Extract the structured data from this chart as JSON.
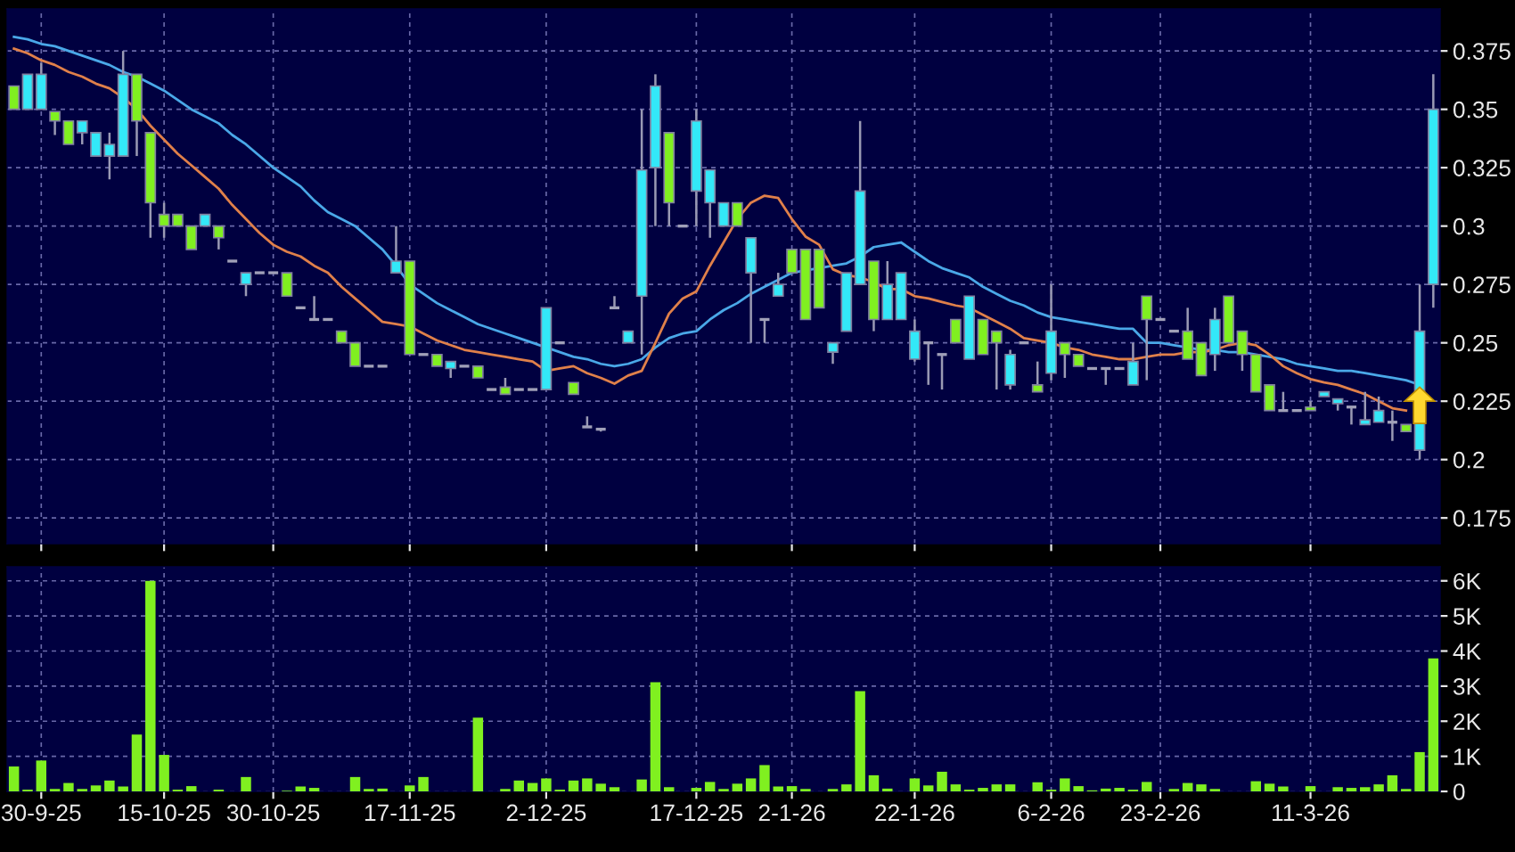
{
  "chart_data": [
    {
      "type": "candlestick",
      "tick_labels": "y",
      "grid": true,
      "categories": [
        null,
        null,
        null,
        null,
        null,
        null,
        null,
        null,
        null,
        null,
        null,
        null,
        null,
        null,
        null,
        null,
        null,
        null,
        null,
        null,
        null,
        null,
        null,
        null,
        null,
        null,
        null,
        null,
        null,
        null,
        null,
        null,
        null,
        null,
        null,
        null,
        null,
        null,
        null,
        null,
        null,
        null,
        null,
        null,
        null,
        null,
        null,
        null,
        null,
        null,
        null,
        null,
        null,
        null,
        null,
        null,
        null,
        null,
        null,
        null,
        null,
        null,
        null,
        null,
        null,
        null,
        null,
        null,
        null,
        null,
        null,
        null,
        null,
        null,
        null,
        null,
        null,
        null,
        null,
        null,
        null,
        null,
        null,
        null,
        null,
        null,
        null,
        null,
        null,
        null,
        null,
        null,
        null,
        null,
        null,
        null,
        null,
        null,
        null,
        null,
        null,
        null,
        null,
        null,
        null
      ],
      "ohlc": [
        [
          0.36,
          0.36,
          0.35,
          0.35
        ],
        [
          0.35,
          0.365,
          0.35,
          0.365
        ],
        [
          0.35,
          0.37,
          0.35,
          0.365
        ],
        [
          0.349,
          0.349,
          0.339,
          0.345
        ],
        [
          0.345,
          0.345,
          0.335,
          0.335
        ],
        [
          0.34,
          0.345,
          0.335,
          0.345
        ],
        [
          0.33,
          0.34,
          0.33,
          0.34
        ],
        [
          0.33,
          0.34,
          0.32,
          0.335
        ],
        [
          0.33,
          0.375,
          0.33,
          0.365
        ],
        [
          0.365,
          0.365,
          0.33,
          0.345
        ],
        [
          0.34,
          0.34,
          0.295,
          0.31
        ],
        [
          0.305,
          0.31,
          0.295,
          0.3
        ],
        [
          0.305,
          0.305,
          0.3,
          0.3
        ],
        [
          0.3,
          0.3,
          0.29,
          0.29
        ],
        [
          0.3,
          0.305,
          0.3,
          0.305
        ],
        [
          0.3,
          0.3,
          0.29,
          0.295
        ],
        [
          0.285,
          0.285,
          0.285,
          0.285
        ],
        [
          0.275,
          0.28,
          0.27,
          0.28
        ],
        [
          0.28,
          0.28,
          0.28,
          0.28
        ],
        [
          0.28,
          0.28,
          0.28,
          0.28
        ],
        [
          0.28,
          0.28,
          0.27,
          0.27
        ],
        [
          0.265,
          0.265,
          0.265,
          0.265
        ],
        [
          0.26,
          0.27,
          0.26,
          0.26
        ],
        [
          0.26,
          0.26,
          0.26,
          0.26
        ],
        [
          0.255,
          0.255,
          0.25,
          0.25
        ],
        [
          0.25,
          0.25,
          0.24,
          0.24
        ],
        [
          0.24,
          0.24,
          0.24,
          0.24
        ],
        [
          0.24,
          0.24,
          0.24,
          0.24
        ],
        [
          0.28,
          0.3,
          0.28,
          0.285
        ],
        [
          0.285,
          0.285,
          0.245,
          0.245
        ],
        [
          0.245,
          0.245,
          0.245,
          0.245
        ],
        [
          0.245,
          0.245,
          0.24,
          0.24
        ],
        [
          0.239,
          0.242,
          0.235,
          0.242
        ],
        [
          0.24,
          0.24,
          0.24,
          0.24
        ],
        [
          0.24,
          0.24,
          0.235,
          0.235
        ],
        [
          0.23,
          0.23,
          0.23,
          0.23
        ],
        [
          0.231,
          0.235,
          0.228,
          0.228
        ],
        [
          0.23,
          0.23,
          0.23,
          0.23
        ],
        [
          0.23,
          0.23,
          0.23,
          0.23
        ],
        [
          0.23,
          0.265,
          0.23,
          0.265
        ],
        [
          0.25,
          0.25,
          0.25,
          0.25
        ],
        [
          0.233,
          0.233,
          0.228,
          0.228
        ],
        [
          0.214,
          0.2185,
          0.214,
          0.214
        ],
        [
          0.213,
          0.213,
          0.212,
          0.213
        ],
        [
          0.265,
          0.27,
          0.265,
          0.265
        ],
        [
          0.25,
          0.255,
          0.25,
          0.255
        ],
        [
          0.27,
          0.35,
          0.245,
          0.324
        ],
        [
          0.325,
          0.365,
          0.3,
          0.36
        ],
        [
          0.34,
          0.34,
          0.3,
          0.31
        ],
        [
          0.3,
          0.3,
          0.3,
          0.3
        ],
        [
          0.315,
          0.35,
          0.3,
          0.345
        ],
        [
          0.31,
          0.324,
          0.295,
          0.324
        ],
        [
          0.3,
          0.31,
          0.3,
          0.31
        ],
        [
          0.31,
          0.31,
          0.3,
          0.3
        ],
        [
          0.28,
          0.295,
          0.25,
          0.295
        ],
        [
          0.26,
          0.26,
          0.25,
          0.26
        ],
        [
          0.27,
          0.28,
          0.27,
          0.275
        ],
        [
          0.29,
          0.29,
          0.28,
          0.28
        ],
        [
          0.29,
          0.29,
          0.26,
          0.26
        ],
        [
          0.29,
          0.29,
          0.265,
          0.265
        ],
        [
          0.246,
          0.25,
          0.241,
          0.25
        ],
        [
          0.255,
          0.28,
          0.255,
          0.28
        ],
        [
          0.275,
          0.345,
          0.275,
          0.315
        ],
        [
          0.285,
          0.285,
          0.255,
          0.26
        ],
        [
          0.26,
          0.285,
          0.26,
          0.275
        ],
        [
          0.26,
          0.28,
          0.26,
          0.28
        ],
        [
          0.243,
          0.26,
          0.242,
          0.255
        ],
        [
          0.25,
          0.25,
          0.232,
          0.25
        ],
        [
          0.245,
          0.245,
          0.23,
          0.245
        ],
        [
          0.26,
          0.26,
          0.25,
          0.25
        ],
        [
          0.243,
          0.27,
          0.243,
          0.27
        ],
        [
          0.26,
          0.26,
          0.245,
          0.245
        ],
        [
          0.255,
          0.255,
          0.23,
          0.25
        ],
        [
          0.232,
          0.247,
          0.23,
          0.245
        ],
        [
          0.25,
          0.25,
          0.25,
          0.25
        ],
        [
          0.232,
          0.242,
          0.229,
          0.229
        ],
        [
          0.237,
          0.275,
          0.234,
          0.255
        ],
        [
          0.25,
          0.25,
          0.235,
          0.245
        ],
        [
          0.245,
          0.245,
          0.24,
          0.24
        ],
        [
          0.239,
          0.239,
          0.239,
          0.239
        ],
        [
          0.239,
          0.239,
          0.232,
          0.239
        ],
        [
          0.239,
          0.239,
          0.239,
          0.239
        ],
        [
          0.232,
          0.25,
          0.232,
          0.242
        ],
        [
          0.27,
          0.27,
          0.234,
          0.26
        ],
        [
          0.26,
          0.26,
          0.26,
          0.26
        ],
        [
          0.255,
          0.255,
          0.255,
          0.255
        ],
        [
          0.255,
          0.265,
          0.243,
          0.243
        ],
        [
          0.25,
          0.25,
          0.236,
          0.236
        ],
        [
          0.245,
          0.265,
          0.238,
          0.26
        ],
        [
          0.27,
          0.27,
          0.25,
          0.25
        ],
        [
          0.255,
          0.255,
          0.238,
          0.245
        ],
        [
          0.245,
          0.245,
          0.229,
          0.229
        ],
        [
          0.232,
          0.232,
          0.221,
          0.221
        ],
        [
          0.221,
          0.229,
          0.221,
          0.221
        ],
        [
          0.221,
          0.221,
          0.221,
          0.221
        ],
        [
          0.2225,
          0.225,
          0.221,
          0.221
        ],
        [
          0.227,
          0.229,
          0.227,
          0.229
        ],
        [
          0.224,
          0.226,
          0.221,
          0.226
        ],
        [
          0.2225,
          0.2225,
          0.215,
          0.2225
        ],
        [
          0.215,
          0.229,
          0.215,
          0.217
        ],
        [
          0.216,
          0.227,
          0.216,
          0.221
        ],
        [
          0.216,
          0.221,
          0.208,
          0.216
        ],
        [
          0.215,
          0.215,
          0.212,
          0.212
        ],
        [
          0.204,
          0.275,
          0.2,
          0.255
        ],
        [
          0.275,
          0.365,
          0.265,
          0.35
        ]
      ],
      "colors": [
        "#80f020",
        "#33e8f8",
        "#33e8f8",
        "#80f020",
        "#80f020",
        "#33e8f8",
        "#33e8f8",
        "#33e8f8",
        "#33e8f8",
        "#80f020",
        "#80f020",
        "#80f020",
        "#80f020",
        "#80f020",
        "#33e8f8",
        "#80f020",
        "#a0a0b8",
        "#33e8f8",
        "#a0a0b8",
        "#a0a0b8",
        "#80f020",
        "#a0a0b8",
        "#a0a0b8",
        "#a0a0b8",
        "#80f020",
        "#80f020",
        "#a0a0b8",
        "#a0a0b8",
        "#33e8f8",
        "#80f020",
        "#a0a0b8",
        "#80f020",
        "#33e8f8",
        "#a0a0b8",
        "#80f020",
        "#a0a0b8",
        "#80f020",
        "#a0a0b8",
        "#a0a0b8",
        "#33e8f8",
        "#a0a0b8",
        "#80f020",
        "#a0a0b8",
        "#a0a0b8",
        "#a0a0b8",
        "#33e8f8",
        "#33e8f8",
        "#33e8f8",
        "#80f020",
        "#a0a0b8",
        "#33e8f8",
        "#33e8f8",
        "#33e8f8",
        "#80f020",
        "#33e8f8",
        "#a0a0b8",
        "#33e8f8",
        "#80f020",
        "#80f020",
        "#80f020",
        "#33e8f8",
        "#33e8f8",
        "#33e8f8",
        "#80f020",
        "#33e8f8",
        "#33e8f8",
        "#33e8f8",
        "#a0a0b8",
        "#a0a0b8",
        "#80f020",
        "#33e8f8",
        "#80f020",
        "#80f020",
        "#33e8f8",
        "#a0a0b8",
        "#80f020",
        "#33e8f8",
        "#80f020",
        "#80f020",
        "#a0a0b8",
        "#a0a0b8",
        "#a0a0b8",
        "#33e8f8",
        "#80f020",
        "#a0a0b8",
        "#a0a0b8",
        "#80f020",
        "#80f020",
        "#33e8f8",
        "#80f020",
        "#80f020",
        "#80f020",
        "#80f020",
        "#a0a0b8",
        "#a0a0b8",
        "#80f020",
        "#33e8f8",
        "#33e8f8",
        "#a0a0b8",
        "#33e8f8",
        "#33e8f8",
        "#a0a0b8",
        "#80f020",
        "#33e8f8",
        "#33e8f8"
      ],
      "series": [
        {
          "type": "line",
          "color": "#4aa8e8",
          "values": [
            0.381,
            0.38,
            0.378,
            0.377,
            0.375,
            0.373,
            0.371,
            0.369,
            0.366,
            0.364,
            0.361,
            0.358,
            0.354,
            0.35,
            0.347,
            0.344,
            0.339,
            0.335,
            0.33,
            0.325,
            0.321,
            0.317,
            0.311,
            0.306,
            0.303,
            0.3,
            0.295,
            0.29,
            0.283,
            0.275,
            0.271,
            0.267,
            0.264,
            0.261,
            0.258,
            0.256,
            0.254,
            0.252,
            0.25,
            0.248,
            0.246,
            0.244,
            0.243,
            0.241,
            0.24,
            0.241,
            0.243,
            0.248,
            0.252,
            0.254,
            0.255,
            0.26,
            0.264,
            0.267,
            0.271,
            0.274,
            0.277,
            0.28,
            0.281,
            0.282,
            0.283,
            0.284,
            0.287,
            0.291,
            0.292,
            0.293,
            0.289,
            0.285,
            0.282,
            0.28,
            0.278,
            0.274,
            0.271,
            0.268,
            0.266,
            0.263,
            0.261,
            0.26,
            0.259,
            0.258,
            0.257,
            0.256,
            0.256,
            0.25,
            0.25,
            0.249,
            0.248,
            0.247,
            0.247,
            0.246,
            0.246,
            0.245,
            0.244,
            0.243,
            0.241,
            0.24,
            0.239,
            0.238,
            0.238,
            0.237,
            0.236,
            0.235,
            0.234,
            0.232,
            null
          ]
        },
        {
          "type": "line",
          "color": "#e0804a",
          "values": [
            0.376,
            0.374,
            0.371,
            0.369,
            0.366,
            0.364,
            0.361,
            0.359,
            0.355,
            0.35,
            0.343,
            0.337,
            0.331,
            0.326,
            0.321,
            0.316,
            0.309,
            0.303,
            0.297,
            0.292,
            0.289,
            0.287,
            0.283,
            0.28,
            0.274,
            0.269,
            0.264,
            0.259,
            0.258,
            0.257,
            0.254,
            0.251,
            0.249,
            0.247,
            0.246,
            0.245,
            0.244,
            0.243,
            0.242,
            0.238,
            0.239,
            0.24,
            0.237,
            0.235,
            0.2325,
            0.236,
            0.238,
            0.25,
            0.2625,
            0.269,
            0.272,
            0.283,
            0.293,
            0.303,
            0.31,
            0.313,
            0.312,
            0.303,
            0.2955,
            0.292,
            0.2815,
            0.279,
            0.278,
            0.276,
            0.273,
            0.273,
            0.27,
            0.269,
            0.2675,
            0.266,
            0.265,
            0.262,
            0.259,
            0.256,
            0.252,
            0.251,
            0.25,
            0.248,
            0.247,
            0.245,
            0.244,
            0.243,
            0.243,
            0.244,
            0.245,
            0.245,
            0.246,
            0.246,
            0.247,
            0.249,
            0.25,
            0.249,
            0.245,
            0.24,
            0.237,
            0.2345,
            0.233,
            0.232,
            0.23,
            0.228,
            0.225,
            0.222,
            0.221,
            null,
            null
          ]
        }
      ],
      "ylim": [
        0.164,
        0.393
      ],
      "yticks": [
        0.175,
        0.2,
        0.225,
        0.25,
        0.275,
        0.3,
        0.325,
        0.35,
        0.375
      ]
    },
    {
      "type": "bar",
      "grid": true,
      "categories": [
        null,
        null,
        "30-9-25",
        null,
        null,
        null,
        null,
        null,
        null,
        null,
        null,
        "15-10-25",
        null,
        null,
        null,
        null,
        null,
        null,
        null,
        "30-10-25",
        null,
        null,
        null,
        null,
        null,
        null,
        null,
        null,
        null,
        "17-11-25",
        null,
        null,
        null,
        null,
        null,
        null,
        null,
        null,
        null,
        "2-12-25",
        null,
        null,
        null,
        null,
        null,
        null,
        null,
        null,
        null,
        null,
        "17-12-25",
        null,
        null,
        null,
        null,
        null,
        null,
        "2-1-26",
        null,
        null,
        null,
        null,
        null,
        null,
        null,
        null,
        "22-1-26",
        null,
        null,
        null,
        null,
        null,
        null,
        null,
        null,
        null,
        "6-2-26",
        null,
        null,
        null,
        null,
        null,
        null,
        null,
        "23-2-26",
        null,
        null,
        null,
        null,
        null,
        null,
        null,
        null,
        null,
        null,
        "11-3-26",
        null,
        null,
        null,
        null,
        null,
        null,
        null,
        null,
        null
      ],
      "color": "#80f020",
      "values": [
        0.71,
        0.05,
        0.88,
        0.07,
        0.24,
        0.07,
        0.17,
        0.31,
        0.14,
        1.62,
        6.0,
        1.04,
        0.05,
        0.15,
        0,
        0.05,
        0,
        0.41,
        0,
        0,
        0.02,
        0.14,
        0.1,
        0,
        0,
        0.41,
        0.07,
        0.08,
        0,
        0.17,
        0.41,
        0,
        0,
        0,
        2.1,
        0,
        0.07,
        0.31,
        0.24,
        0.37,
        0.05,
        0.31,
        0.37,
        0.22,
        0.12,
        0,
        0.34,
        3.11,
        0.12,
        0,
        0.1,
        0.27,
        0.07,
        0.22,
        0.37,
        0.75,
        0.14,
        0.15,
        0.07,
        0,
        0.07,
        0.2,
        2.86,
        0.46,
        0.08,
        0,
        0.37,
        0.17,
        0.56,
        0.2,
        0.05,
        0.1,
        0.2,
        0.2,
        0,
        0.26,
        0.05,
        0.37,
        0.15,
        0.03,
        0.08,
        0.1,
        0.05,
        0.27,
        0,
        0.07,
        0.24,
        0.2,
        0.07,
        0,
        0,
        0.29,
        0.22,
        0.14,
        0,
        0.15,
        0,
        0.12,
        0.1,
        0.12,
        0.2,
        0.46,
        0.07,
        1.12,
        3.79
      ],
      "ylim": [
        0,
        6.4
      ],
      "yticks": [
        0,
        {
          "value": 1,
          "label": "1K"
        },
        {
          "value": 2,
          "label": "2K"
        },
        {
          "value": 3,
          "label": "3K"
        },
        {
          "value": 4,
          "label": "4K"
        },
        {
          "value": 5,
          "label": "5K"
        },
        {
          "value": 6,
          "label": "6K"
        }
      ]
    }
  ]
}
